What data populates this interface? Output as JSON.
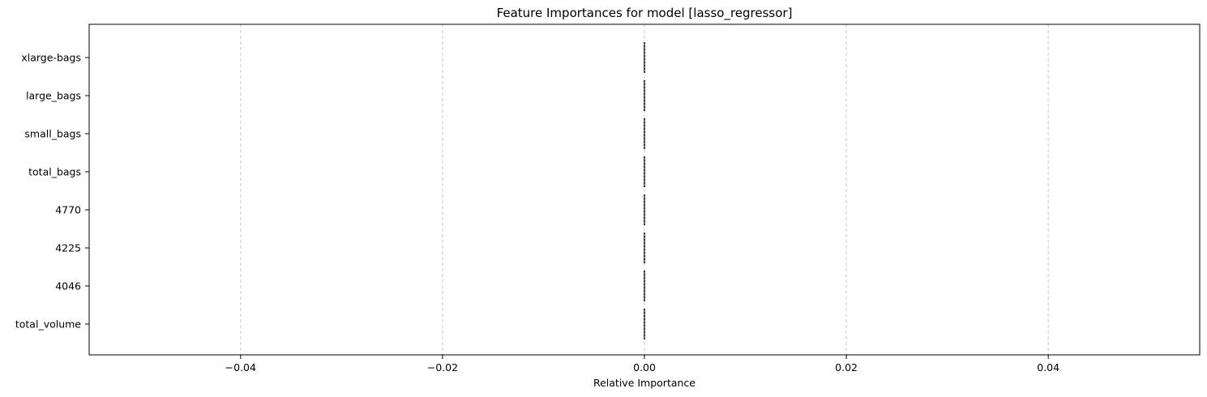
{
  "chart_data": {
    "type": "bar",
    "orientation": "horizontal",
    "title": "Feature Importances for model [lasso_regressor]",
    "xlabel": "Relative Importance",
    "ylabel": "",
    "categories": [
      "total_volume",
      "4046",
      "4225",
      "4770",
      "total_bags",
      "small_bags",
      "large_bags",
      "xlarge-bags"
    ],
    "values": [
      0,
      0,
      0,
      0,
      0,
      0,
      0,
      0
    ],
    "xlim": [
      -0.055,
      0.055
    ],
    "xticks": [
      -0.04,
      -0.02,
      0.0,
      0.02,
      0.04
    ],
    "xtick_labels": [
      "−0.04",
      "−0.02",
      "0.00",
      "0.02",
      "0.04"
    ],
    "grid": "x dashed",
    "legend": "none",
    "colors": {
      "bar_edge": "#000000",
      "grid": "#c8c8c8",
      "axis": "#000000"
    }
  }
}
